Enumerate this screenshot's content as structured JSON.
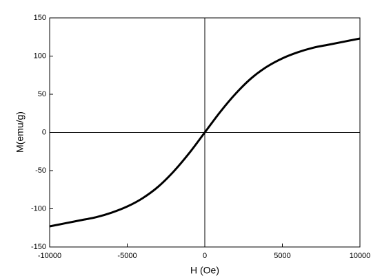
{
  "chart_data": {
    "type": "line",
    "x_label": "H (Oe)",
    "y_label": "M(emu/g)",
    "x": [
      -10000,
      -9000,
      -8000,
      -7000,
      -6000,
      -5000,
      -4000,
      -3000,
      -2000,
      -1000,
      0,
      1000,
      2000,
      3000,
      4000,
      5000,
      6000,
      7000,
      8000,
      9000,
      10000
    ],
    "values": [
      -123,
      -119,
      -115,
      -111,
      -105,
      -97,
      -86,
      -71,
      -51,
      -27,
      0,
      27,
      51,
      71,
      86,
      97,
      105,
      111,
      115,
      119,
      123
    ],
    "color": "#000000",
    "xlim": [
      -10000,
      10000
    ],
    "xticks": [
      -10000,
      -5000,
      0,
      5000,
      10000
    ],
    "ylim": [
      -150,
      150
    ],
    "yticks": [
      -150,
      -100,
      -50,
      0,
      50,
      100,
      150
    ],
    "zero_lines": true
  }
}
